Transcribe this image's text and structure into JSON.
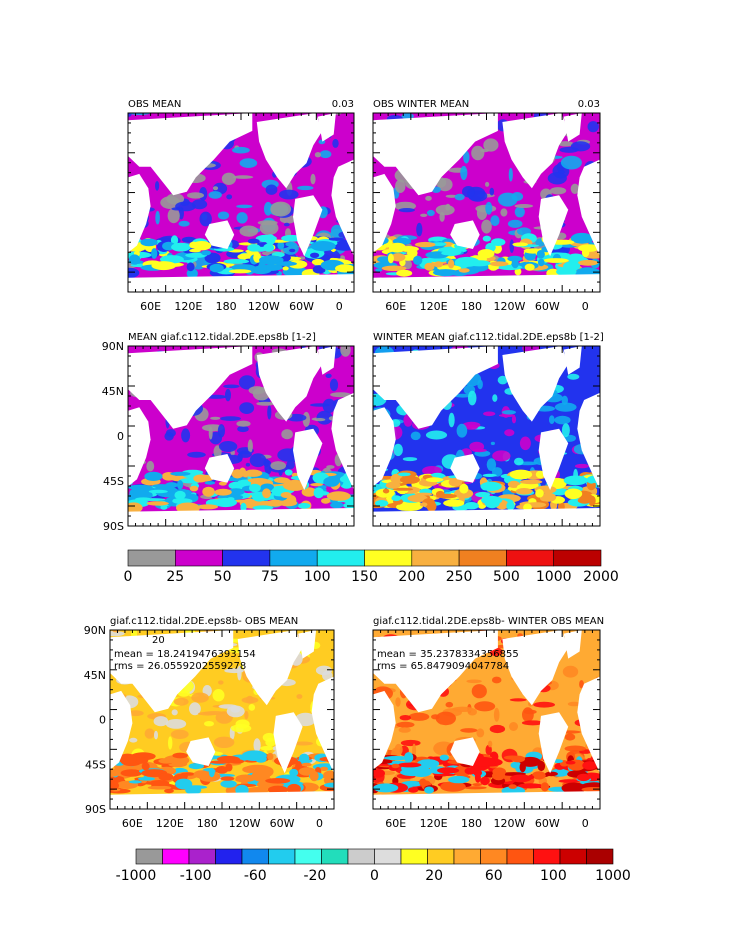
{
  "chart_data": [
    {
      "type": "heatmap",
      "title": "OBS MEAN",
      "corner_value": "0.03",
      "xticks": [
        "60E",
        "120E",
        "180",
        "120W",
        "60W",
        "0"
      ],
      "yticks": [],
      "colorbar": "top"
    },
    {
      "type": "heatmap",
      "title": "OBS WINTER MEAN",
      "corner_value": "0.03",
      "xticks": [
        "60E",
        "120E",
        "180",
        "120W",
        "60W",
        "0"
      ],
      "yticks": [],
      "colorbar": "top"
    },
    {
      "type": "heatmap",
      "title": "MEAN giaf.c112.tidal.2DE.eps8b [1-2]",
      "xticks": [],
      "yticks": [
        "90N",
        "45N",
        "0",
        "45S",
        "90S"
      ],
      "colorbar": "top"
    },
    {
      "type": "heatmap",
      "title": "WINTER MEAN giaf.c112.tidal.2DE.eps8b [1-2]",
      "xticks": [],
      "yticks": [],
      "colorbar": "top"
    },
    {
      "type": "heatmap",
      "title": "giaf.c112.tidal.2DE.eps8b- OBS MEAN",
      "stat_label": "20",
      "mean_text": "mean = 18.2419476393154",
      "rms_text": "rms = 26.0559202559278",
      "xticks": [
        "60E",
        "120E",
        "180",
        "120W",
        "60W",
        "0"
      ],
      "yticks": [
        "90N",
        "45N",
        "0",
        "45S",
        "90S"
      ],
      "colorbar": "bottom"
    },
    {
      "type": "heatmap",
      "title": "giaf.c112.tidal.2DE.eps8b- WINTER OBS MEAN",
      "mean_text": "mean = 35.2378334356855",
      "rms_text": "rms = 65.8479094047784",
      "xticks": [
        "60E",
        "120E",
        "180",
        "120W",
        "60W",
        "0"
      ],
      "yticks": [],
      "colorbar": "bottom"
    }
  ],
  "colorbar_top": {
    "labels": [
      "0",
      "25",
      "50",
      "75",
      "100",
      "150",
      "200",
      "250",
      "500",
      "1000",
      "2000"
    ],
    "colors": [
      "#999999",
      "#cc00cc",
      "#2233ee",
      "#11aaee",
      "#22eeee",
      "#ffff22",
      "#f8b040",
      "#f08020",
      "#ee1111",
      "#bb0000"
    ]
  },
  "colorbar_bottom": {
    "labels": [
      "-1000",
      "-100",
      "-60",
      "-20",
      "0",
      "20",
      "60",
      "100",
      "1000"
    ],
    "colors": [
      "#999999",
      "#ff00ff",
      "#aa22cc",
      "#2222ee",
      "#1188ee",
      "#22ccee",
      "#44ffee",
      "#22ddbb",
      "#cccccc",
      "#dddddd",
      "#ffff22",
      "#ffcc22",
      "#ffaa33",
      "#ff8822",
      "#ff5511",
      "#ff1111",
      "#cc0000",
      "#aa0000"
    ]
  }
}
